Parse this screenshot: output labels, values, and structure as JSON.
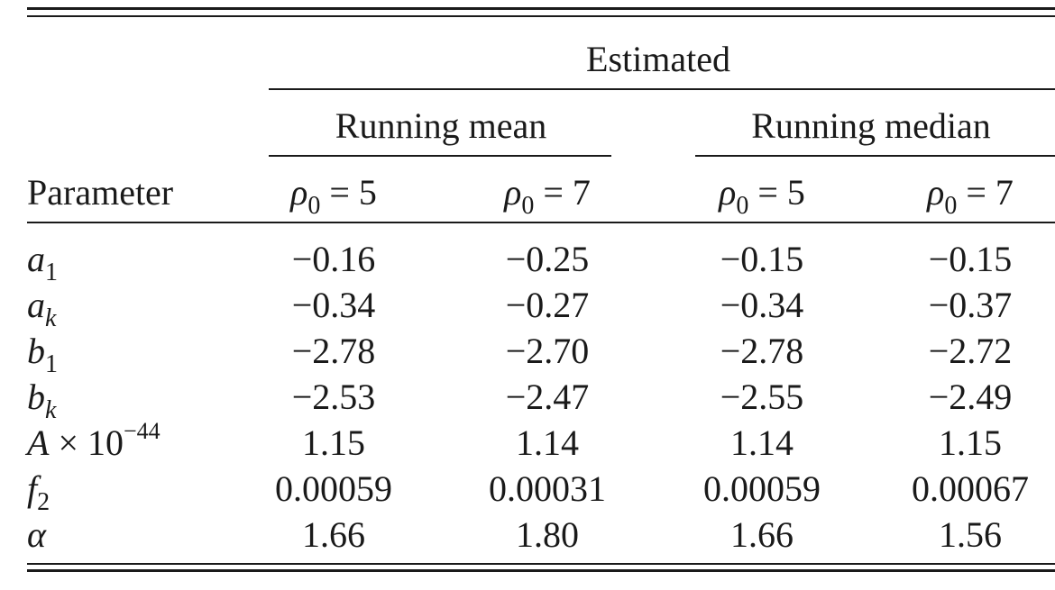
{
  "table": {
    "group_header": "Estimated",
    "subgroups": [
      "Running mean",
      "Running median"
    ],
    "column_header_label": "Parameter",
    "rho_symbol": "ρ",
    "rho_subscript": "0",
    "rho_values": [
      "5",
      "7",
      "5",
      "7"
    ],
    "rows": [
      {
        "param": {
          "base": "a",
          "sub": "1"
        },
        "values": [
          "−0.16",
          "−0.25",
          "−0.15",
          "−0.15"
        ]
      },
      {
        "param": {
          "base": "a",
          "sub": "k"
        },
        "values": [
          "−0.34",
          "−0.27",
          "−0.34",
          "−0.37"
        ]
      },
      {
        "param": {
          "base": "b",
          "sub": "1"
        },
        "values": [
          "−2.78",
          "−2.70",
          "−2.78",
          "−2.72"
        ]
      },
      {
        "param": {
          "base": "b",
          "sub": "k"
        },
        "values": [
          "−2.53",
          "−2.47",
          "−2.55",
          "−2.49"
        ]
      },
      {
        "param": {
          "base": "A",
          "times": "× 10",
          "sup": "−44"
        },
        "values": [
          "1.15",
          "1.14",
          "1.14",
          "1.15"
        ]
      },
      {
        "param": {
          "base": "f",
          "sub": "2"
        },
        "values": [
          "0.00059",
          "0.00031",
          "0.00059",
          "0.00067"
        ]
      },
      {
        "param": {
          "base": "α"
        },
        "values": [
          "1.66",
          "1.80",
          "1.66",
          "1.56"
        ]
      }
    ]
  }
}
